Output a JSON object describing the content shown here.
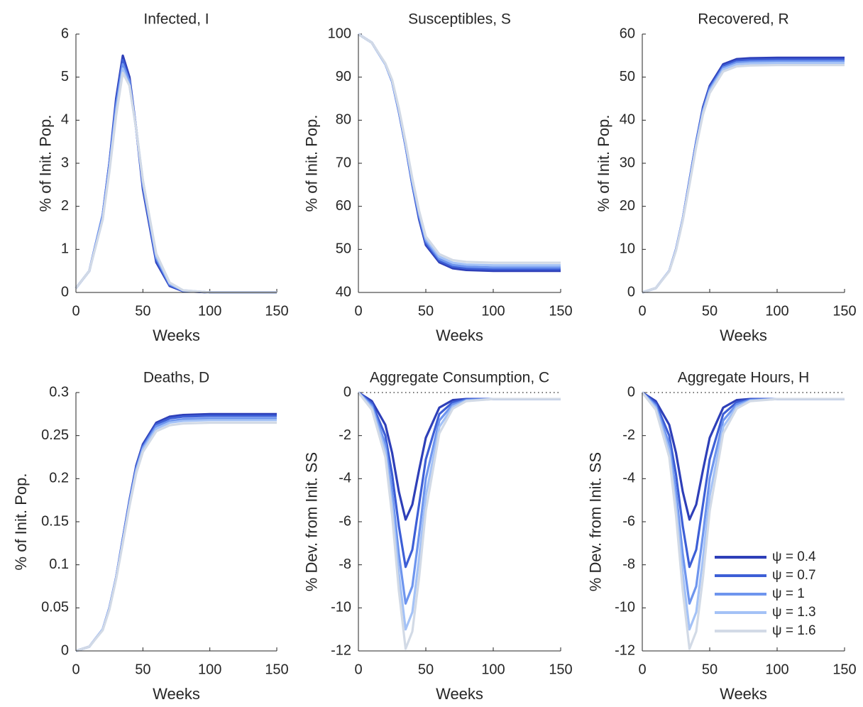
{
  "chart_data": [
    {
      "type": "line",
      "title": "Infected, I",
      "xlabel": "Weeks",
      "ylabel": "% of Init. Pop.",
      "x": [
        0,
        10,
        20,
        25,
        30,
        35,
        40,
        45,
        50,
        60,
        70,
        80,
        100,
        150
      ],
      "xlim": [
        0,
        150
      ],
      "xticks": [
        0,
        50,
        100,
        150
      ],
      "ylim": [
        0,
        6
      ],
      "yticks": [
        0,
        1,
        2,
        3,
        4,
        5,
        6
      ],
      "series": [
        {
          "color": "#2e3fb8",
          "values": [
            0.1,
            0.5,
            1.8,
            3.0,
            4.5,
            5.5,
            5.0,
            3.8,
            2.4,
            0.7,
            0.15,
            0.03,
            0,
            0
          ]
        },
        {
          "color": "#3d5fd6",
          "values": [
            0.1,
            0.5,
            1.8,
            3.0,
            4.4,
            5.4,
            4.9,
            3.8,
            2.5,
            0.75,
            0.17,
            0.04,
            0,
            0
          ]
        },
        {
          "color": "#6e95ee",
          "values": [
            0.1,
            0.5,
            1.8,
            2.9,
            4.3,
            5.3,
            4.9,
            3.8,
            2.5,
            0.8,
            0.19,
            0.04,
            0,
            0
          ]
        },
        {
          "color": "#a4c2f6",
          "values": [
            0.1,
            0.5,
            1.7,
            2.9,
            4.2,
            5.2,
            4.8,
            3.8,
            2.6,
            0.85,
            0.21,
            0.05,
            0,
            0
          ]
        },
        {
          "color": "#d2dae6",
          "values": [
            0.1,
            0.5,
            1.7,
            2.8,
            4.1,
            5.1,
            4.8,
            3.8,
            2.6,
            0.9,
            0.23,
            0.05,
            0,
            0
          ]
        }
      ]
    },
    {
      "type": "line",
      "title": "Susceptibles, S",
      "xlabel": "Weeks",
      "ylabel": "% of Init. Pop.",
      "x": [
        0,
        10,
        20,
        25,
        30,
        35,
        40,
        45,
        50,
        60,
        70,
        80,
        100,
        150
      ],
      "xlim": [
        0,
        150
      ],
      "xticks": [
        0,
        50,
        100,
        150
      ],
      "ylim": [
        40,
        100
      ],
      "yticks": [
        40,
        50,
        60,
        70,
        80,
        90,
        100
      ],
      "series": [
        {
          "color": "#2e3fb8",
          "values": [
            100,
            98,
            93,
            89,
            82,
            74,
            65,
            57,
            51,
            47,
            45.6,
            45.2,
            45,
            45
          ]
        },
        {
          "color": "#3d5fd6",
          "values": [
            100,
            98,
            93,
            89,
            82,
            74,
            65,
            57.5,
            51.5,
            47.4,
            46,
            45.6,
            45.4,
            45.4
          ]
        },
        {
          "color": "#6e95ee",
          "values": [
            100,
            98,
            93,
            89,
            82.2,
            74.3,
            65.5,
            58,
            52,
            47.8,
            46.4,
            46,
            45.8,
            45.8
          ]
        },
        {
          "color": "#a4c2f6",
          "values": [
            100,
            98,
            93,
            89.2,
            82.5,
            74.6,
            66,
            58.5,
            52.5,
            48.3,
            46.9,
            46.5,
            46.3,
            46.3
          ]
        },
        {
          "color": "#d2dae6",
          "values": [
            100,
            98,
            93.2,
            89.4,
            82.8,
            75,
            66.5,
            59,
            53,
            48.9,
            47.5,
            47.1,
            46.9,
            46.9
          ]
        }
      ]
    },
    {
      "type": "line",
      "title": "Recovered, R",
      "xlabel": "Weeks",
      "ylabel": "% of Init. Pop.",
      "x": [
        0,
        10,
        20,
        25,
        30,
        35,
        40,
        45,
        50,
        60,
        70,
        80,
        100,
        150
      ],
      "xlim": [
        0,
        150
      ],
      "xticks": [
        0,
        50,
        100,
        150
      ],
      "ylim": [
        0,
        60
      ],
      "yticks": [
        0,
        10,
        20,
        30,
        40,
        50,
        60
      ],
      "series": [
        {
          "color": "#2e3fb8",
          "values": [
            0,
            1,
            5,
            10,
            17,
            26,
            35,
            43,
            48,
            53,
            54.2,
            54.4,
            54.5,
            54.5
          ]
        },
        {
          "color": "#3d5fd6",
          "values": [
            0,
            1,
            5,
            10,
            17,
            26,
            35,
            42.6,
            47.6,
            52.6,
            53.8,
            54,
            54.1,
            54.1
          ]
        },
        {
          "color": "#6e95ee",
          "values": [
            0,
            1,
            5,
            10,
            17,
            25.7,
            34.6,
            42.2,
            47.2,
            52.2,
            53.4,
            53.6,
            53.7,
            53.7
          ]
        },
        {
          "color": "#a4c2f6",
          "values": [
            0,
            1,
            5,
            9.8,
            16.8,
            25.4,
            34.2,
            41.8,
            46.8,
            51.8,
            53,
            53.2,
            53.3,
            53.3
          ]
        },
        {
          "color": "#d2dae6",
          "values": [
            0,
            1,
            4.9,
            9.7,
            16.6,
            25,
            33.8,
            41.3,
            46.3,
            51.3,
            52.5,
            52.7,
            52.8,
            52.8
          ]
        }
      ]
    },
    {
      "type": "line",
      "title": "Deaths, D",
      "xlabel": "Weeks",
      "ylabel": "% of Init. Pop.",
      "x": [
        0,
        10,
        20,
        25,
        30,
        35,
        40,
        45,
        50,
        60,
        70,
        80,
        100,
        150
      ],
      "xlim": [
        0,
        150
      ],
      "xticks": [
        0,
        50,
        100,
        150
      ],
      "ylim": [
        0,
        0.3
      ],
      "yticks": [
        0,
        0.05,
        0.1,
        0.15,
        0.2,
        0.25,
        0.3
      ],
      "series": [
        {
          "color": "#2e3fb8",
          "values": [
            0,
            0.005,
            0.025,
            0.05,
            0.085,
            0.13,
            0.175,
            0.215,
            0.24,
            0.265,
            0.272,
            0.274,
            0.275,
            0.275
          ]
        },
        {
          "color": "#3d5fd6",
          "values": [
            0,
            0.005,
            0.025,
            0.05,
            0.085,
            0.13,
            0.174,
            0.213,
            0.238,
            0.263,
            0.27,
            0.272,
            0.273,
            0.273
          ]
        },
        {
          "color": "#6e95ee",
          "values": [
            0,
            0.005,
            0.025,
            0.05,
            0.085,
            0.128,
            0.172,
            0.211,
            0.236,
            0.261,
            0.267,
            0.269,
            0.27,
            0.27
          ]
        },
        {
          "color": "#a4c2f6",
          "values": [
            0,
            0.005,
            0.025,
            0.049,
            0.084,
            0.127,
            0.17,
            0.209,
            0.234,
            0.258,
            0.265,
            0.267,
            0.268,
            0.268
          ]
        },
        {
          "color": "#d2dae6",
          "values": [
            0,
            0.005,
            0.024,
            0.048,
            0.083,
            0.125,
            0.168,
            0.206,
            0.231,
            0.255,
            0.262,
            0.264,
            0.265,
            0.265
          ]
        }
      ]
    },
    {
      "type": "line",
      "title": "Aggregate Consumption, C",
      "xlabel": "Weeks",
      "ylabel": "% Dev. from Init. SS",
      "x": [
        0,
        10,
        20,
        25,
        30,
        35,
        40,
        45,
        50,
        60,
        70,
        80,
        100,
        150
      ],
      "xlim": [
        0,
        150
      ],
      "xticks": [
        0,
        50,
        100,
        150
      ],
      "ylim": [
        -12,
        0
      ],
      "yticks": [
        -12,
        -10,
        -8,
        -6,
        -4,
        -2,
        0
      ],
      "hline": 0,
      "series": [
        {
          "color": "#2e3fb8",
          "values": [
            0,
            -0.4,
            -1.5,
            -2.8,
            -4.6,
            -5.9,
            -5.2,
            -3.6,
            -2.1,
            -0.7,
            -0.35,
            -0.3,
            -0.3,
            -0.3
          ]
        },
        {
          "color": "#3d5fd6",
          "values": [
            0,
            -0.5,
            -2.0,
            -3.8,
            -6.2,
            -8.1,
            -7.3,
            -5.2,
            -3.1,
            -1.0,
            -0.45,
            -0.32,
            -0.3,
            -0.3
          ]
        },
        {
          "color": "#6e95ee",
          "values": [
            0,
            -0.6,
            -2.4,
            -4.6,
            -7.5,
            -9.8,
            -9.0,
            -6.6,
            -4.0,
            -1.3,
            -0.55,
            -0.35,
            -0.3,
            -0.3
          ]
        },
        {
          "color": "#a4c2f6",
          "values": [
            0,
            -0.7,
            -2.7,
            -5.2,
            -8.4,
            -11,
            -10.2,
            -7.7,
            -4.8,
            -1.6,
            -0.65,
            -0.38,
            -0.3,
            -0.3
          ]
        },
        {
          "color": "#d2dae6",
          "values": [
            0,
            -0.8,
            -3.0,
            -5.7,
            -9.2,
            -11.9,
            -11.1,
            -8.6,
            -5.5,
            -1.9,
            -0.75,
            -0.4,
            -0.3,
            -0.3
          ]
        }
      ]
    },
    {
      "type": "line",
      "title": "Aggregate Hours, H",
      "xlabel": "Weeks",
      "ylabel": "% Dev. from Init. SS",
      "x": [
        0,
        10,
        20,
        25,
        30,
        35,
        40,
        45,
        50,
        60,
        70,
        80,
        100,
        150
      ],
      "xlim": [
        0,
        150
      ],
      "xticks": [
        0,
        50,
        100,
        150
      ],
      "ylim": [
        -12,
        0
      ],
      "yticks": [
        -12,
        -10,
        -8,
        -6,
        -4,
        -2,
        0
      ],
      "hline": 0,
      "legend": "lower right",
      "series": [
        {
          "name": "ψ = 0.4",
          "color": "#2e3fb8",
          "values": [
            0,
            -0.4,
            -1.5,
            -2.8,
            -4.6,
            -5.9,
            -5.2,
            -3.6,
            -2.1,
            -0.7,
            -0.35,
            -0.3,
            -0.3,
            -0.3
          ]
        },
        {
          "name": "ψ = 0.7",
          "color": "#3d5fd6",
          "values": [
            0,
            -0.5,
            -2.0,
            -3.8,
            -6.2,
            -8.1,
            -7.3,
            -5.2,
            -3.1,
            -1.0,
            -0.45,
            -0.32,
            -0.3,
            -0.3
          ]
        },
        {
          "name": "ψ = 1",
          "color": "#6e95ee",
          "values": [
            0,
            -0.6,
            -2.4,
            -4.6,
            -7.5,
            -9.8,
            -9.0,
            -6.6,
            -4.0,
            -1.3,
            -0.55,
            -0.35,
            -0.3,
            -0.3
          ]
        },
        {
          "name": "ψ = 1.3",
          "color": "#a4c2f6",
          "values": [
            0,
            -0.7,
            -2.7,
            -5.2,
            -8.4,
            -11,
            -10.2,
            -7.7,
            -4.8,
            -1.6,
            -0.65,
            -0.38,
            -0.3,
            -0.3
          ]
        },
        {
          "name": "ψ = 1.6",
          "color": "#d2dae6",
          "values": [
            0,
            -0.8,
            -3.0,
            -5.7,
            -9.2,
            -11.9,
            -11.1,
            -8.6,
            -5.5,
            -1.9,
            -0.75,
            -0.4,
            -0.3,
            -0.3
          ]
        }
      ]
    }
  ]
}
